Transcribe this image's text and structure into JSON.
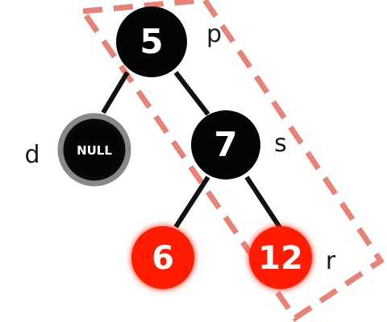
{
  "colors": {
    "black_node": "#050505",
    "red_node": "#ff1f00",
    "edge": "#111111",
    "dashed_box": "#e98276",
    "null_ring": "#888888"
  },
  "nodes": {
    "n5": {
      "value": "5",
      "color": "black",
      "side_label": "p"
    },
    "null": {
      "value": "NULL",
      "color": "black",
      "side_label": "d"
    },
    "n7": {
      "value": "7",
      "color": "black",
      "side_label": "s"
    },
    "n6": {
      "value": "6",
      "color": "red"
    },
    "n12": {
      "value": "12",
      "color": "red",
      "side_label": "r"
    }
  }
}
